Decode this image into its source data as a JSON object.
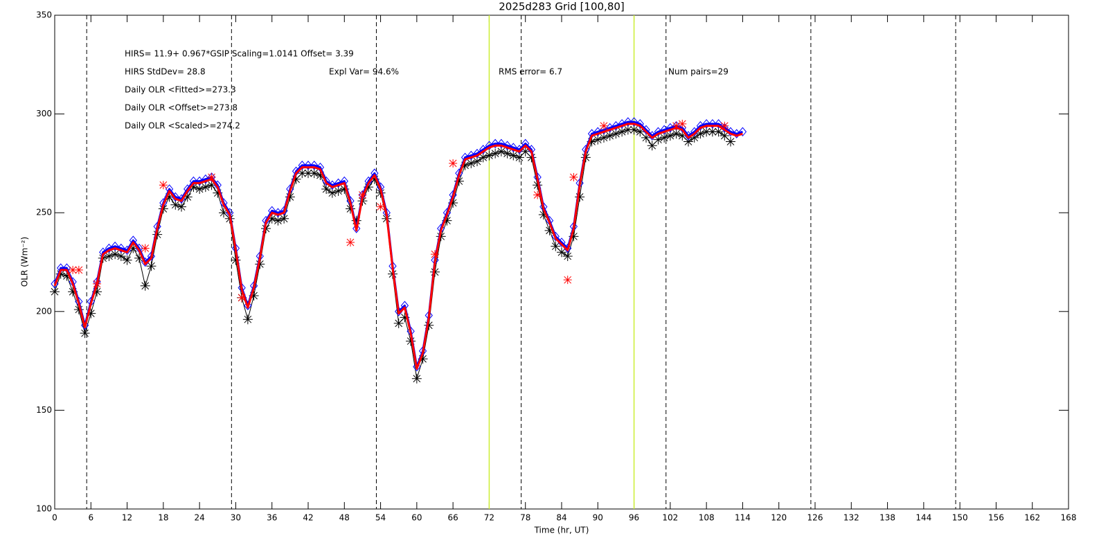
{
  "chart_data": {
    "type": "line",
    "title": "2025d283 Grid [100,80]",
    "xlabel": "Time (hr, UT)",
    "ylabel": "OLR (Wm⁻²)",
    "xlim": [
      0,
      168
    ],
    "ylim": [
      100,
      350
    ],
    "xticks": [
      0,
      6,
      12,
      18,
      24,
      30,
      36,
      42,
      48,
      54,
      60,
      66,
      72,
      78,
      84,
      90,
      96,
      102,
      108,
      114,
      120,
      126,
      132,
      138,
      144,
      150,
      156,
      162,
      168
    ],
    "yticks": [
      100,
      150,
      200,
      250,
      300,
      350
    ],
    "dashed_lines": [
      5.3,
      29.3,
      53.3,
      77.3,
      101.3,
      125.3,
      149.3
    ],
    "dashed_color": "#000000",
    "highlight_lines": [
      72,
      96
    ],
    "highlight_color": "#ccee33",
    "annotations": [
      "HIRS=   11.9+  0.967*GSIP  Scaling=1.0141  Offset=  3.39",
      "HIRS StdDev= 28.8",
      "Expl Var= 94.6%",
      "RMS error=  6.7",
      "Num pairs=29",
      "Daily OLR <Fitted>=273.3",
      "Daily OLR <Offset>=273.8",
      "Daily OLR <Scaled>=274.2"
    ],
    "series": [
      {
        "marker": "asterisk",
        "line": true,
        "color": "#000000",
        "x": [
          0,
          1,
          2,
          3,
          4,
          5,
          6,
          7,
          8,
          9,
          10,
          11,
          12,
          13,
          14,
          15,
          16,
          17,
          18,
          19,
          20,
          21,
          22,
          23,
          24,
          25,
          26,
          27,
          28,
          29,
          30,
          31,
          32,
          33,
          34,
          35,
          36,
          37,
          38,
          39,
          40,
          41,
          42,
          43,
          44,
          45,
          46,
          47,
          48,
          49,
          50,
          51,
          52,
          53,
          54,
          55,
          56,
          57,
          58,
          59,
          60,
          61,
          62,
          63,
          64,
          65,
          66,
          67,
          68,
          69,
          70,
          71,
          72,
          73,
          74,
          75,
          76,
          77,
          78,
          79,
          80,
          81,
          82,
          83,
          84,
          85,
          86,
          87,
          88,
          89,
          90,
          91,
          92,
          93,
          94,
          95,
          96,
          97,
          98,
          99,
          100,
          101,
          102,
          103,
          104,
          105,
          106,
          107,
          108,
          109,
          110,
          111,
          112
        ],
        "values": [
          210,
          219,
          218,
          210,
          201,
          189,
          199,
          210,
          227,
          228,
          229,
          228,
          226,
          232,
          227,
          213,
          223,
          239,
          252,
          258,
          254,
          253,
          258,
          263,
          262,
          263,
          264,
          260,
          250,
          247,
          226,
          207,
          196,
          208,
          224,
          242,
          247,
          246,
          247,
          258,
          267,
          270,
          270,
          270,
          269,
          262,
          260,
          261,
          262,
          252,
          246,
          256,
          263,
          267,
          260,
          247,
          219,
          194,
          197,
          185,
          166,
          176,
          193,
          220,
          238,
          246,
          255,
          266,
          274,
          275,
          276,
          278,
          279,
          280,
          281,
          280,
          279,
          278,
          281,
          278,
          264,
          249,
          241,
          233,
          230,
          228,
          238,
          258,
          278,
          286,
          287,
          288,
          289,
          290,
          291,
          292,
          292,
          291,
          288,
          284,
          287,
          288,
          289,
          290,
          289,
          286,
          288,
          290,
          291,
          291,
          291,
          289,
          286
        ]
      },
      {
        "marker": "diamond",
        "line": true,
        "color": "#0000ff",
        "x": [
          0,
          1,
          2,
          3,
          4,
          5,
          6,
          7,
          8,
          9,
          10,
          11,
          12,
          13,
          14,
          15,
          16,
          17,
          18,
          19,
          20,
          21,
          22,
          23,
          24,
          25,
          26,
          27,
          28,
          29,
          30,
          31,
          32,
          33,
          34,
          35,
          36,
          37,
          38,
          39,
          40,
          41,
          42,
          43,
          44,
          45,
          46,
          47,
          48,
          49,
          50,
          51,
          52,
          53,
          54,
          55,
          56,
          57,
          58,
          59,
          60,
          61,
          62,
          63,
          64,
          65,
          66,
          67,
          68,
          69,
          70,
          71,
          72,
          73,
          74,
          75,
          76,
          77,
          78,
          79,
          80,
          81,
          82,
          83,
          84,
          85,
          86,
          87,
          88,
          89,
          90,
          91,
          92,
          93,
          94,
          95,
          96,
          97,
          98,
          99,
          100,
          101,
          102,
          103,
          104,
          105,
          106,
          107,
          108,
          109,
          110,
          111,
          112,
          113,
          114
        ],
        "values": [
          214,
          222,
          222,
          215,
          205,
          193,
          205,
          215,
          230,
          232,
          233,
          232,
          231,
          236,
          232,
          225,
          228,
          243,
          255,
          262,
          258,
          257,
          262,
          266,
          266,
          267,
          268,
          264,
          255,
          250,
          232,
          212,
          203,
          213,
          228,
          246,
          251,
          250,
          251,
          262,
          271,
          274,
          274,
          274,
          273,
          266,
          264,
          265,
          266,
          256,
          242,
          259,
          266,
          270,
          263,
          250,
          223,
          200,
          203,
          190,
          172,
          180,
          198,
          226,
          242,
          250,
          259,
          270,
          278,
          279,
          280,
          282,
          284,
          285,
          285,
          284,
          283,
          282,
          285,
          282,
          268,
          253,
          246,
          238,
          235,
          232,
          243,
          265,
          282,
          290,
          291,
          292,
          293,
          294,
          295,
          296,
          296,
          295,
          292,
          289,
          291,
          292,
          293,
          294,
          293,
          289,
          291,
          294,
          295,
          295,
          295,
          293,
          291,
          290,
          291
        ]
      },
      {
        "marker": "none",
        "line": true,
        "color": "#ff0000",
        "x": [
          0,
          1,
          2,
          3,
          4,
          5,
          6,
          7,
          8,
          9,
          10,
          11,
          12,
          13,
          14,
          15,
          16,
          17,
          18,
          19,
          20,
          21,
          22,
          23,
          24,
          25,
          26,
          27,
          28,
          29,
          30,
          31,
          32,
          33,
          34,
          35,
          36,
          37,
          38,
          39,
          40,
          41,
          42,
          43,
          44,
          45,
          46,
          47,
          48,
          49,
          50,
          51,
          52,
          53,
          54,
          55,
          56,
          57,
          58,
          59,
          60,
          61,
          62,
          63,
          64,
          65,
          66,
          67,
          68,
          69,
          70,
          71,
          72,
          73,
          74,
          75,
          76,
          77,
          78,
          79,
          80,
          81,
          82,
          83,
          84,
          85,
          86,
          87,
          88,
          89,
          90,
          91,
          92,
          93,
          94,
          95,
          96,
          97,
          98,
          99,
          100,
          101,
          102,
          103,
          104,
          105,
          106,
          107,
          108,
          109,
          110,
          111,
          112,
          113,
          114
        ],
        "values": [
          213,
          221,
          221,
          214,
          204,
          192,
          204,
          214,
          229,
          231,
          232,
          231,
          230,
          235,
          231,
          224,
          227,
          242,
          254,
          261,
          257,
          256,
          261,
          265,
          265,
          266,
          267,
          263,
          254,
          249,
          231,
          211,
          202,
          212,
          227,
          245,
          250,
          249,
          250,
          261,
          270,
          273,
          273,
          273,
          272,
          265,
          263,
          264,
          265,
          255,
          241,
          258,
          265,
          269,
          262,
          249,
          222,
          199,
          202,
          189,
          171,
          179,
          197,
          225,
          241,
          249,
          258,
          269,
          277,
          278,
          279,
          281,
          283,
          284,
          284,
          283,
          282,
          281,
          284,
          281,
          267,
          252,
          245,
          237,
          234,
          231,
          242,
          264,
          281,
          289,
          290,
          291,
          292,
          293,
          294,
          295,
          295,
          294,
          291,
          288,
          290,
          291,
          292,
          293,
          292,
          288,
          290,
          293,
          294,
          294,
          294,
          292,
          290,
          289,
          290
        ]
      },
      {
        "marker": "star",
        "line": false,
        "color": "#ff0000",
        "x": [
          3,
          4,
          7,
          15,
          18,
          26,
          31,
          49,
          51,
          54,
          63,
          66,
          80,
          85,
          86,
          91,
          103,
          104,
          111
        ],
        "values": [
          221,
          221,
          214,
          232,
          264,
          268,
          207,
          235,
          259,
          253,
          229,
          275,
          259,
          216,
          268,
          294,
          294,
          295,
          294
        ]
      }
    ]
  }
}
